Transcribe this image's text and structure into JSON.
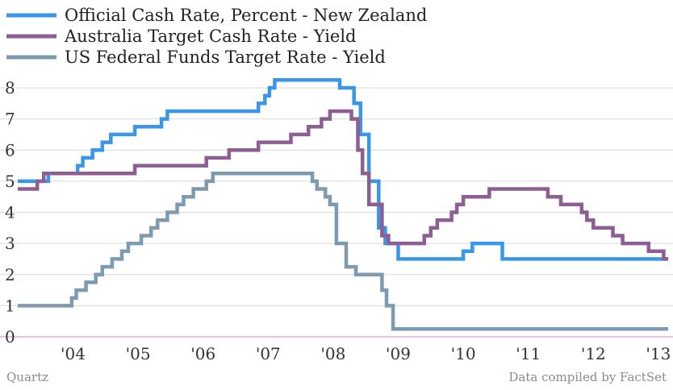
{
  "chart_data": {
    "type": "line",
    "title": "",
    "xlabel": "",
    "ylabel": "",
    "xlim": [
      2003.15,
      2013.15
    ],
    "ylim": [
      0,
      8.4
    ],
    "y_ticks": [
      0,
      1,
      2,
      3,
      4,
      5,
      6,
      7,
      8
    ],
    "x_ticks": [
      {
        "value": 2004,
        "label": "'04"
      },
      {
        "value": 2005,
        "label": "'05"
      },
      {
        "value": 2006,
        "label": "'06"
      },
      {
        "value": 2007,
        "label": "'07"
      },
      {
        "value": 2008,
        "label": "'08"
      },
      {
        "value": 2009,
        "label": "'09"
      },
      {
        "value": 2010,
        "label": "'10"
      },
      {
        "value": 2011,
        "label": "'11"
      },
      {
        "value": 2012,
        "label": "'12"
      },
      {
        "value": 2013,
        "label": "'13"
      }
    ],
    "grid": true,
    "legend_position": "top-left",
    "series": [
      {
        "name": "Official Cash Rate, Percent - New Zealand",
        "color": "#3a96e8",
        "step": true,
        "points": [
          [
            2003.15,
            5.0
          ],
          [
            2003.62,
            5.25
          ],
          [
            2004.07,
            5.5
          ],
          [
            2004.15,
            5.75
          ],
          [
            2004.3,
            6.0
          ],
          [
            2004.45,
            6.25
          ],
          [
            2004.58,
            6.5
          ],
          [
            2004.95,
            6.75
          ],
          [
            2005.36,
            7.0
          ],
          [
            2005.45,
            7.25
          ],
          [
            2006.7,
            7.25
          ],
          [
            2006.85,
            7.5
          ],
          [
            2006.95,
            7.75
          ],
          [
            2007.02,
            8.0
          ],
          [
            2007.1,
            8.25
          ],
          [
            2008.1,
            8.0
          ],
          [
            2008.32,
            7.5
          ],
          [
            2008.42,
            6.5
          ],
          [
            2008.55,
            5.0
          ],
          [
            2008.7,
            3.5
          ],
          [
            2008.8,
            3.0
          ],
          [
            2009.0,
            2.5
          ],
          [
            2010.0,
            2.75
          ],
          [
            2010.14,
            3.0
          ],
          [
            2010.6,
            2.5
          ],
          [
            2013.15,
            2.5
          ]
        ]
      },
      {
        "name": "Australia Target Cash Rate - Yield",
        "color": "#8d5d93",
        "step": true,
        "points": [
          [
            2003.15,
            4.75
          ],
          [
            2003.45,
            5.0
          ],
          [
            2003.55,
            5.25
          ],
          [
            2004.95,
            5.5
          ],
          [
            2006.05,
            5.75
          ],
          [
            2006.4,
            6.0
          ],
          [
            2006.85,
            6.25
          ],
          [
            2007.35,
            6.5
          ],
          [
            2007.62,
            6.75
          ],
          [
            2007.82,
            7.0
          ],
          [
            2007.95,
            7.25
          ],
          [
            2008.28,
            7.0
          ],
          [
            2008.38,
            6.0
          ],
          [
            2008.45,
            5.25
          ],
          [
            2008.55,
            4.25
          ],
          [
            2008.75,
            3.25
          ],
          [
            2008.85,
            3.0
          ],
          [
            2009.4,
            3.25
          ],
          [
            2009.5,
            3.5
          ],
          [
            2009.6,
            3.75
          ],
          [
            2009.82,
            4.0
          ],
          [
            2009.9,
            4.25
          ],
          [
            2010.0,
            4.5
          ],
          [
            2010.4,
            4.75
          ],
          [
            2011.3,
            4.5
          ],
          [
            2011.5,
            4.25
          ],
          [
            2011.82,
            4.0
          ],
          [
            2011.9,
            3.75
          ],
          [
            2012.0,
            3.5
          ],
          [
            2012.3,
            3.25
          ],
          [
            2012.45,
            3.0
          ],
          [
            2012.85,
            2.75
          ],
          [
            2013.08,
            2.5
          ],
          [
            2013.15,
            2.5
          ]
        ]
      },
      {
        "name": "US Federal Funds Target Rate - Yield",
        "color": "#7d9bb0",
        "step": true,
        "points": [
          [
            2003.15,
            1.0
          ],
          [
            2003.98,
            1.25
          ],
          [
            2004.05,
            1.5
          ],
          [
            2004.2,
            1.75
          ],
          [
            2004.35,
            2.0
          ],
          [
            2004.45,
            2.25
          ],
          [
            2004.6,
            2.5
          ],
          [
            2004.75,
            2.75
          ],
          [
            2004.85,
            3.0
          ],
          [
            2005.05,
            3.25
          ],
          [
            2005.2,
            3.5
          ],
          [
            2005.3,
            3.75
          ],
          [
            2005.45,
            4.0
          ],
          [
            2005.6,
            4.25
          ],
          [
            2005.7,
            4.5
          ],
          [
            2005.85,
            4.75
          ],
          [
            2006.05,
            5.0
          ],
          [
            2006.15,
            5.25
          ],
          [
            2007.68,
            5.0
          ],
          [
            2007.75,
            4.75
          ],
          [
            2007.88,
            4.5
          ],
          [
            2007.95,
            4.25
          ],
          [
            2008.05,
            3.0
          ],
          [
            2008.2,
            2.25
          ],
          [
            2008.35,
            2.0
          ],
          [
            2008.75,
            1.5
          ],
          [
            2008.82,
            1.0
          ],
          [
            2008.92,
            0.25
          ],
          [
            2013.15,
            0.25
          ]
        ]
      }
    ]
  },
  "footer": {
    "source_left": "Quartz",
    "source_right": "Data compiled by FactSet"
  }
}
